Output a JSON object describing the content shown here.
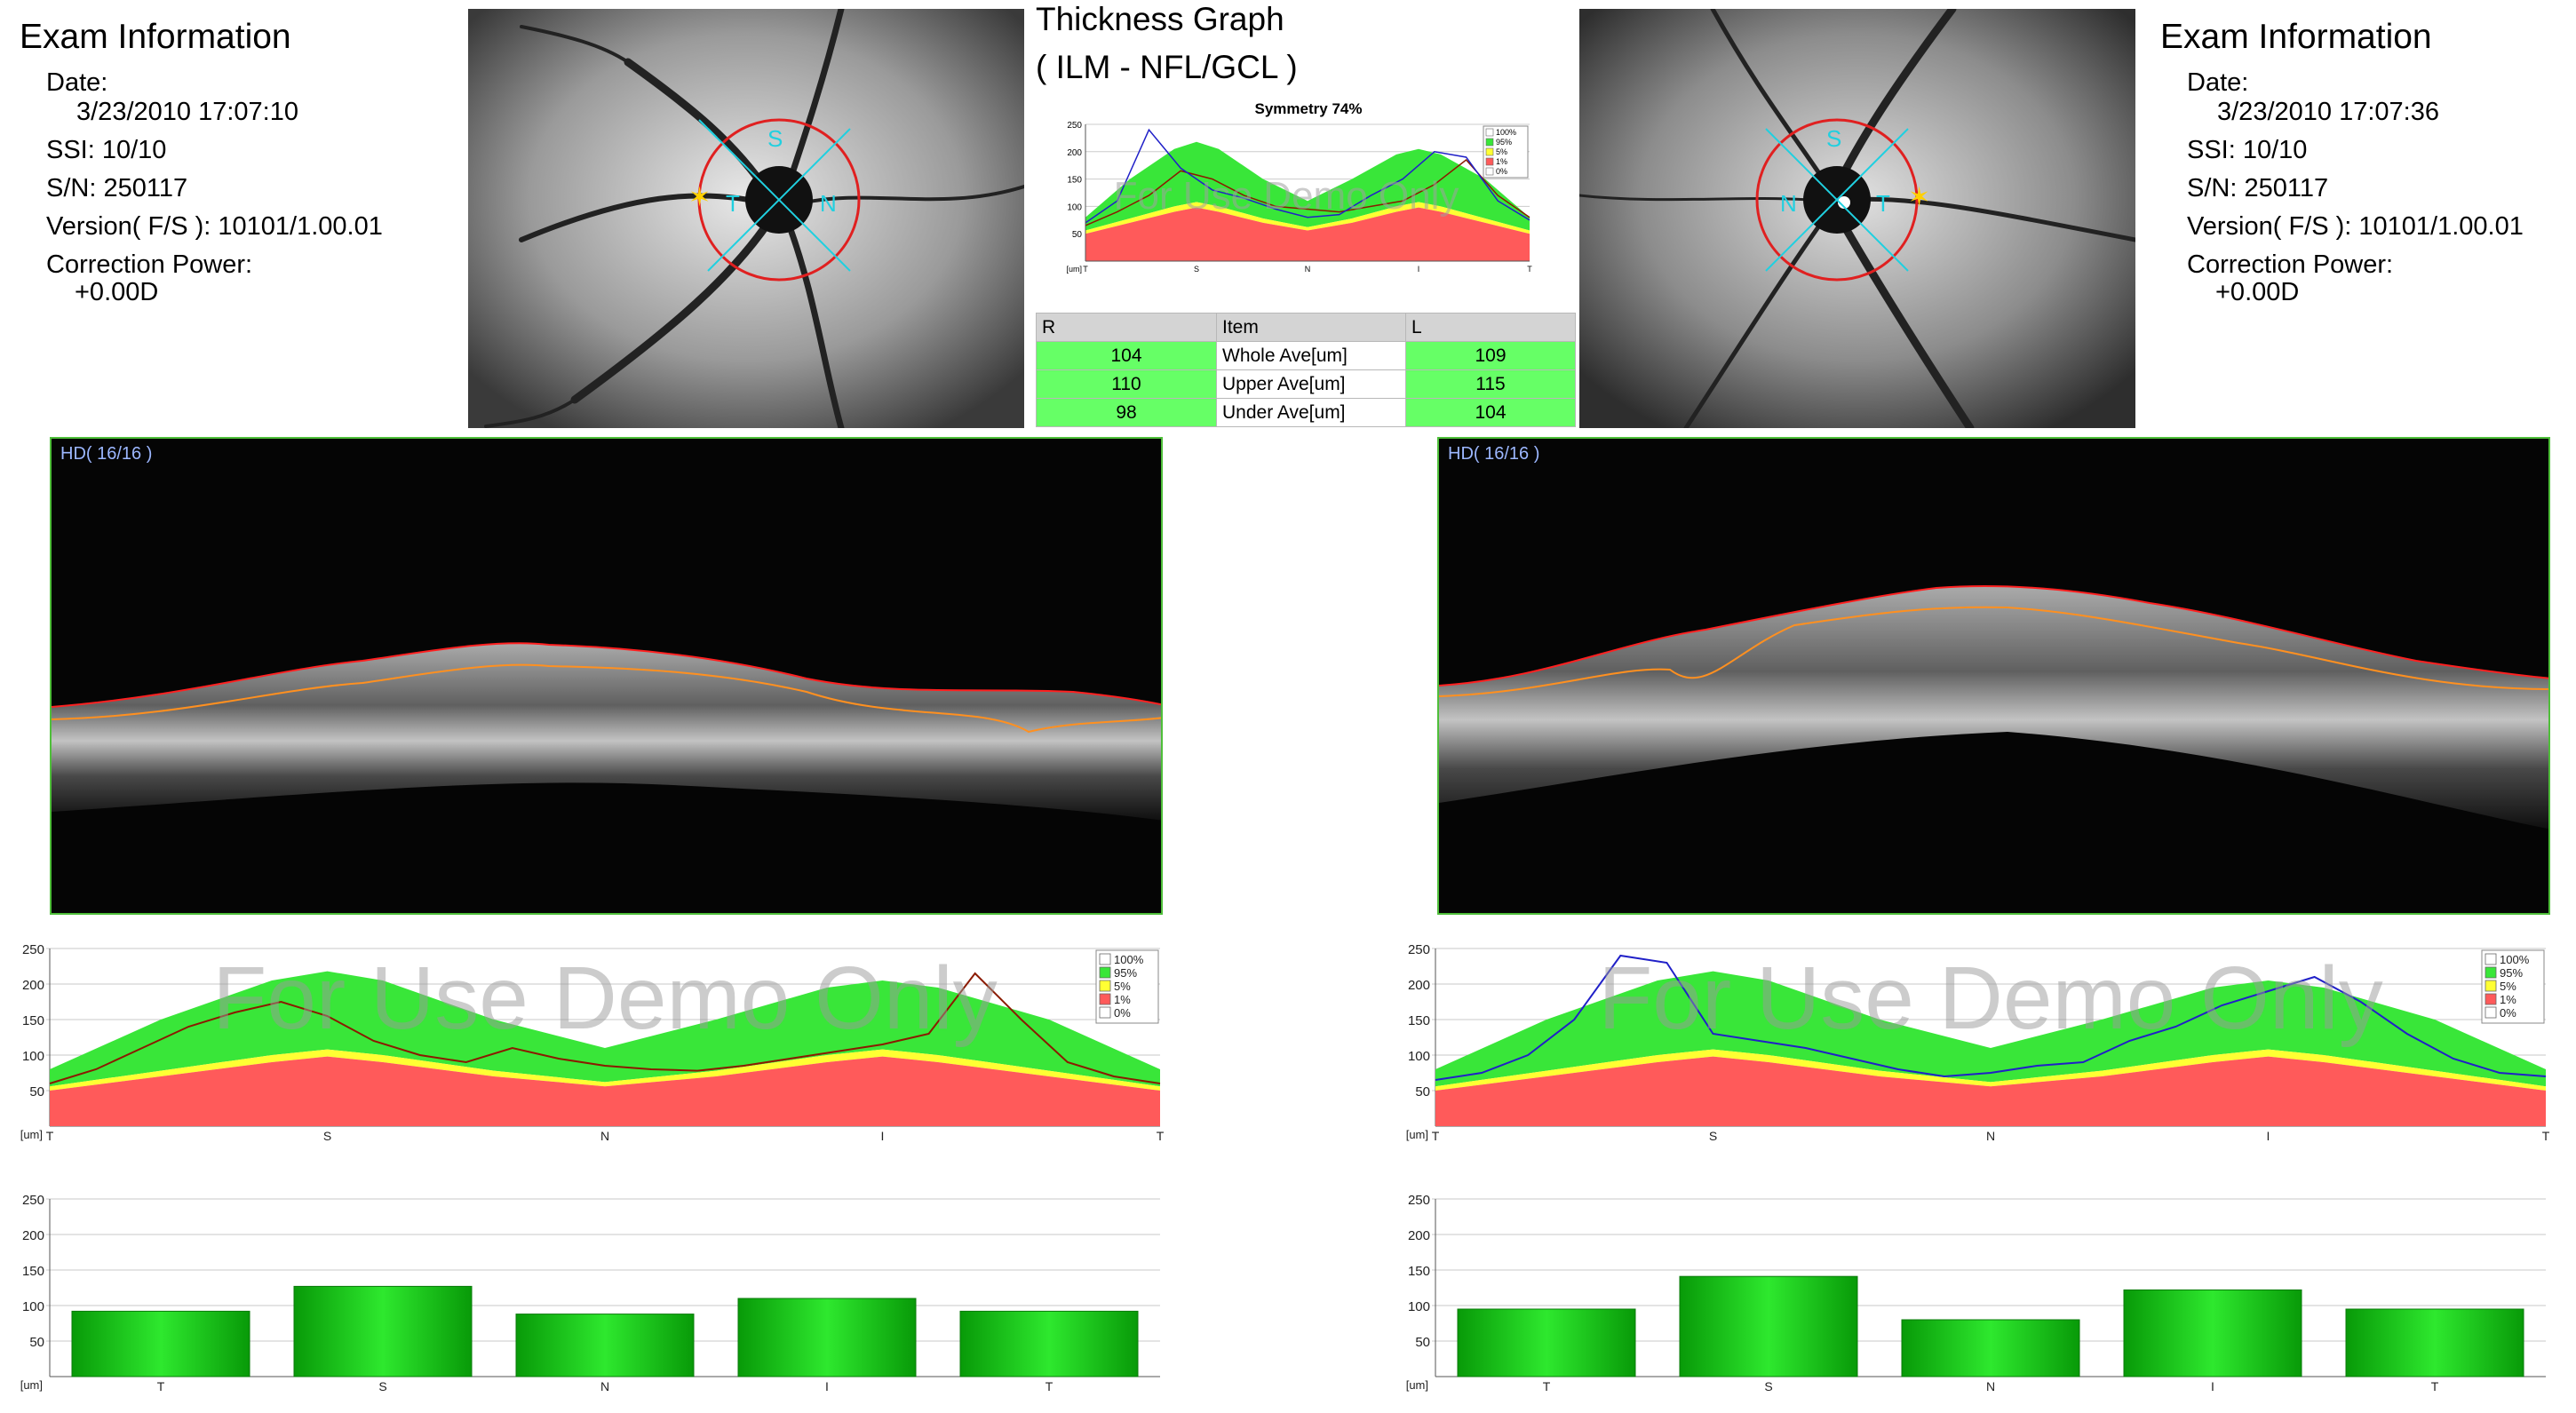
{
  "left_exam": {
    "title": "Exam Information",
    "date_label": "Date:",
    "date": "3/23/2010 17:07:10",
    "ssi": "SSI: 10/10",
    "sn": "S/N: 250117",
    "version": "Version( F/S ): 10101/1.00.01",
    "cp_label": "Correction Power:",
    "cp": "+0.00D"
  },
  "right_exam": {
    "title": "Exam Information",
    "date_label": "Date:",
    "date": "3/23/2010 17:07:36",
    "ssi": "SSI: 10/10",
    "sn": "S/N: 250117",
    "version": "Version( F/S ): 10101/1.00.01",
    "cp_label": "Correction Power:",
    "cp": "+0.00D"
  },
  "fundus_labels": {
    "left": [
      "S",
      "T",
      "N"
    ],
    "right": [
      "S",
      "N",
      "T"
    ]
  },
  "thickness_graph": {
    "title_line1": "Thickness Graph",
    "title_line2": "( ILM - NFL/GCL )",
    "symmetry": "Symmetry 74%",
    "watermark": "For Use Demo Only"
  },
  "table": {
    "headers": [
      "R",
      "Item",
      "L"
    ],
    "rows": [
      {
        "r": "104",
        "item": "Whole Ave[um]",
        "l": "109"
      },
      {
        "r": "110",
        "item": "Upper Ave[um]",
        "l": "115"
      },
      {
        "r": "98",
        "item": "Under Ave[um]",
        "l": "104"
      }
    ]
  },
  "oct": {
    "left_label": "HD( 16/16 )",
    "right_label": "HD( 16/16 )"
  },
  "legend": [
    "100%",
    "95%",
    "5%",
    "1%",
    "0%"
  ],
  "colors": {
    "green": "#39e639",
    "yellow": "#ffff33",
    "red": "#ff5a5a",
    "left_series": "#8b1a00",
    "right_series": "#2020c8"
  },
  "chart_data": [
    {
      "type": "area",
      "name": "right-eye-thickness-profile",
      "unit_label": "[um]",
      "yticks": [
        50,
        100,
        150,
        200,
        250
      ],
      "ylim": [
        0,
        250
      ],
      "xticks": [
        "T",
        "S",
        "N",
        "I",
        "T"
      ],
      "watermark": "For Use Demo Only",
      "band_x": [
        0,
        0.1,
        0.2,
        0.25,
        0.3,
        0.4,
        0.5,
        0.6,
        0.7,
        0.75,
        0.8,
        0.9,
        1
      ],
      "band_1pct": [
        50,
        70,
        90,
        98,
        90,
        70,
        56,
        70,
        90,
        98,
        90,
        70,
        50
      ],
      "band_5pct": [
        56,
        78,
        100,
        108,
        100,
        78,
        62,
        78,
        100,
        108,
        100,
        78,
        56
      ],
      "band_95pct": [
        80,
        150,
        205,
        218,
        205,
        150,
        110,
        150,
        195,
        205,
        195,
        150,
        80
      ],
      "series": [
        {
          "values": [
            60,
            80,
            110,
            140,
            160,
            175,
            155,
            120,
            100,
            90,
            110,
            95,
            85,
            80,
            78,
            85,
            95,
            105,
            115,
            130,
            215,
            150,
            90,
            70,
            60
          ]
        }
      ]
    },
    {
      "type": "area",
      "name": "left-eye-thickness-profile",
      "unit_label": "[um]",
      "yticks": [
        50,
        100,
        150,
        200,
        250
      ],
      "ylim": [
        0,
        250
      ],
      "xticks": [
        "T",
        "S",
        "N",
        "I",
        "T"
      ],
      "watermark": "For Use Demo Only",
      "band_x": [
        0,
        0.1,
        0.2,
        0.25,
        0.3,
        0.4,
        0.5,
        0.6,
        0.7,
        0.75,
        0.8,
        0.9,
        1
      ],
      "band_1pct": [
        50,
        70,
        90,
        98,
        90,
        70,
        56,
        70,
        90,
        98,
        90,
        70,
        50
      ],
      "band_5pct": [
        56,
        78,
        100,
        108,
        100,
        78,
        62,
        78,
        100,
        108,
        100,
        78,
        56
      ],
      "band_95pct": [
        80,
        150,
        205,
        218,
        205,
        150,
        110,
        150,
        195,
        205,
        195,
        150,
        80
      ],
      "series": [
        {
          "values": [
            65,
            75,
            100,
            150,
            240,
            230,
            130,
            120,
            110,
            95,
            80,
            70,
            75,
            85,
            90,
            120,
            140,
            170,
            190,
            210,
            175,
            130,
            95,
            75,
            70
          ]
        }
      ]
    },
    {
      "type": "bar",
      "name": "right-eye-sector-bars",
      "unit_label": "[um]",
      "categories": [
        "T",
        "S",
        "N",
        "I",
        "T"
      ],
      "values": [
        92,
        127,
        88,
        110,
        92
      ],
      "ylim": [
        0,
        250
      ],
      "yticks": [
        50,
        100,
        150,
        200,
        250
      ]
    },
    {
      "type": "bar",
      "name": "left-eye-sector-bars",
      "unit_label": "[um]",
      "categories": [
        "T",
        "S",
        "N",
        "I",
        "T"
      ],
      "values": [
        95,
        141,
        80,
        122,
        95
      ],
      "ylim": [
        0,
        250
      ],
      "yticks": [
        50,
        100,
        150,
        200,
        250
      ]
    },
    {
      "type": "line",
      "name": "symmetry-thickness-graph",
      "title": "Symmetry 74%",
      "unit_label": "[um]",
      "yticks": [
        50,
        100,
        150,
        200,
        250
      ],
      "ylim": [
        0,
        250
      ],
      "xticks": [
        "T",
        "S",
        "N",
        "I",
        "T"
      ],
      "watermark": "For Use Demo Only",
      "series": [
        {
          "values": [
            65,
            90,
            120,
            165,
            150,
            120,
            100,
            95,
            90,
            100,
            110,
            140,
            185,
            120,
            80
          ]
        },
        {
          "values": [
            70,
            110,
            240,
            170,
            130,
            115,
            95,
            80,
            85,
            120,
            150,
            200,
            190,
            110,
            75
          ]
        }
      ]
    }
  ]
}
